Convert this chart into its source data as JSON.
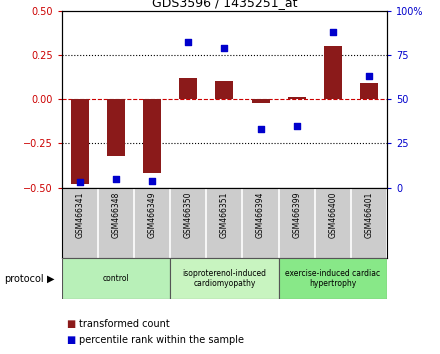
{
  "title": "GDS3596 / 1435251_at",
  "samples": [
    "GSM466341",
    "GSM466348",
    "GSM466349",
    "GSM466350",
    "GSM466351",
    "GSM466394",
    "GSM466399",
    "GSM466400",
    "GSM466401"
  ],
  "bar_values": [
    -0.48,
    -0.32,
    -0.42,
    0.12,
    0.1,
    -0.02,
    0.01,
    0.3,
    0.09
  ],
  "scatter_values": [
    3,
    5,
    4,
    82,
    79,
    33,
    35,
    88,
    63
  ],
  "groups": [
    {
      "label": "control",
      "start": 0,
      "end": 3,
      "color": "#b8f0b8"
    },
    {
      "label": "isoproterenol-induced\ncardiomyopathy",
      "start": 3,
      "end": 6,
      "color": "#c8f4c0"
    },
    {
      "label": "exercise-induced cardiac\nhypertrophy",
      "start": 6,
      "end": 9,
      "color": "#88e888"
    }
  ],
  "ylim_left": [
    -0.5,
    0.5
  ],
  "ylim_right": [
    0,
    100
  ],
  "yticks_left": [
    -0.5,
    -0.25,
    0,
    0.25,
    0.5
  ],
  "yticks_right": [
    0,
    25,
    50,
    75,
    100
  ],
  "bar_color": "#8b1a1a",
  "scatter_color": "#0000cc",
  "zero_line_color": "#cc0000",
  "bg_color": "#ffffff",
  "sample_bg_color": "#cccccc",
  "legend_bar_label": "transformed count",
  "legend_scatter_label": "percentile rank within the sample",
  "protocol_label": "protocol"
}
